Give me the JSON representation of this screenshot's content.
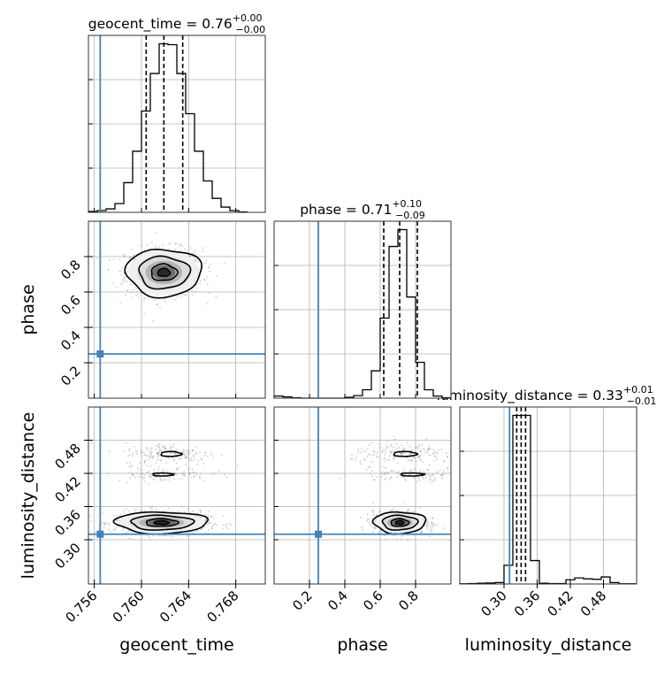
{
  "chart_data": {
    "type": "corner",
    "parameters": [
      "geocent_time",
      "phase",
      "luminosity_distance"
    ],
    "axis_labels": [
      "geocent_time",
      "phase",
      "luminosity_distance"
    ],
    "truths": [
      0.7565,
      0.25,
      0.31
    ],
    "truth_color": "#4682b4",
    "ranges": [
      [
        0.7555,
        0.7705
      ],
      [
        0.0,
        1.0
      ],
      [
        0.22,
        0.54
      ]
    ],
    "ticks": {
      "geocent_time": {
        "values": [
          0.756,
          0.76,
          0.764,
          0.768
        ],
        "labels": [
          "0.756",
          "0.760",
          "0.764",
          "0.768"
        ]
      },
      "phase": {
        "values": [
          0.2,
          0.4,
          0.6,
          0.8
        ],
        "labels": [
          "0.2",
          "0.4",
          "0.6",
          "0.8"
        ]
      },
      "luminosity_distance": {
        "values": [
          0.3,
          0.36,
          0.42,
          0.48
        ],
        "labels": [
          "0.30",
          "0.36",
          "0.42",
          "0.48"
        ]
      }
    },
    "marginals": [
      {
        "parameter": "geocent_time",
        "title": "geocent_time = 0.76",
        "title_plus": "+0.00",
        "title_minus": "−0.00",
        "median": 0.7619,
        "quantiles": [
          0.7604,
          0.7619,
          0.7635
        ],
        "bin_edges": [
          0.7555,
          0.75625,
          0.757,
          0.75775,
          0.7585,
          0.75925,
          0.76,
          0.76075,
          0.7615,
          0.76225,
          0.763,
          0.76375,
          0.7645,
          0.76525,
          0.766,
          0.76675,
          0.7675,
          0.76825,
          0.769
        ],
        "counts": [
          2,
          4,
          8,
          20,
          68,
          140,
          232,
          318,
          386,
          384,
          318,
          226,
          140,
          72,
          32,
          12,
          4,
          1
        ]
      },
      {
        "parameter": "phase",
        "title": "phase = 0.71",
        "title_plus": "+0.10",
        "title_minus": "−0.09",
        "median": 0.71,
        "quantiles": [
          0.62,
          0.71,
          0.81
        ],
        "bin_edges": [
          0.0,
          0.05,
          0.1,
          0.15,
          0.2,
          0.25,
          0.3,
          0.35,
          0.4,
          0.45,
          0.5,
          0.55,
          0.6,
          0.65,
          0.7,
          0.75,
          0.8,
          0.85,
          0.9,
          0.95,
          1.0
        ],
        "counts": [
          10,
          6,
          2,
          0,
          0,
          0,
          0,
          0,
          4,
          12,
          40,
          130,
          380,
          720,
          800,
          480,
          170,
          40,
          10,
          2
        ]
      },
      {
        "parameter": "luminosity_distance",
        "title": "luminosity_distance = 0.33",
        "title_plus": "+0.01",
        "title_minus": "−0.01",
        "median": 0.331,
        "quantiles": [
          0.323,
          0.331,
          0.339
        ],
        "bin_edges": [
          0.22,
          0.236,
          0.252,
          0.268,
          0.284,
          0.3,
          0.316,
          0.332,
          0.348,
          0.364,
          0.38,
          0.396,
          0.412,
          0.428,
          0.444,
          0.46,
          0.476,
          0.492,
          0.508,
          0.524,
          0.54
        ],
        "counts": [
          1,
          2,
          3,
          4,
          6,
          80,
          720,
          720,
          100,
          3,
          2,
          2,
          18,
          26,
          22,
          20,
          30,
          6,
          1,
          1
        ]
      }
    ],
    "joint_2d": [
      {
        "x": "geocent_time",
        "y": "phase",
        "centers": [
          {
            "x": 0.7619,
            "y": 0.71,
            "sx": 0.0013,
            "sy": 0.055,
            "n": 900
          }
        ],
        "contour_levels": [
          0.4,
          0.85,
          1.65,
          2.45
        ]
      },
      {
        "x": "geocent_time",
        "y": "luminosity_distance",
        "centers": [
          {
            "x": 0.7617,
            "y": 0.331,
            "sx": 0.0016,
            "sy": 0.008,
            "n": 780
          },
          {
            "x": 0.7625,
            "y": 0.455,
            "sx": 0.0016,
            "sy": 0.008,
            "n": 170
          },
          {
            "x": 0.7618,
            "y": 0.418,
            "sx": 0.0016,
            "sy": 0.005,
            "n": 110
          }
        ],
        "contour_levels": [
          0.4,
          0.85,
          1.65,
          2.45
        ]
      },
      {
        "x": "phase",
        "y": "luminosity_distance",
        "centers": [
          {
            "x": 0.71,
            "y": 0.331,
            "sx": 0.06,
            "sy": 0.008,
            "n": 780
          },
          {
            "x": 0.74,
            "y": 0.455,
            "sx": 0.12,
            "sy": 0.008,
            "n": 170
          },
          {
            "x": 0.78,
            "y": 0.418,
            "sx": 0.12,
            "sy": 0.005,
            "n": 110
          }
        ],
        "contour_levels": [
          0.4,
          0.85,
          1.65,
          2.45
        ]
      }
    ]
  }
}
